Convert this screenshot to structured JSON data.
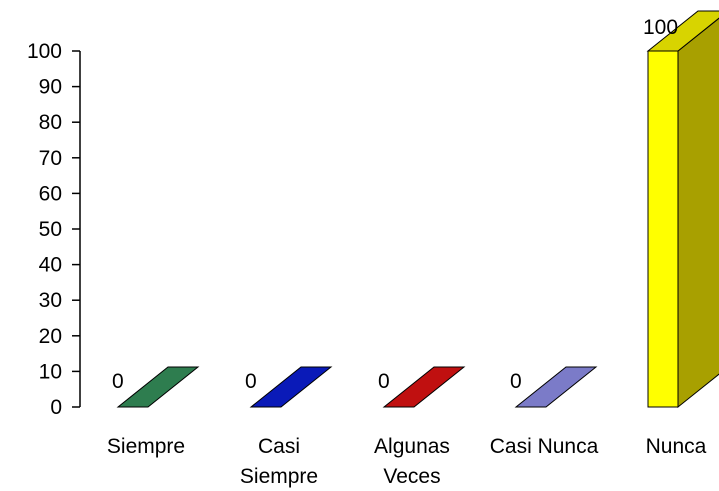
{
  "chart_data": {
    "type": "bar",
    "three_d": true,
    "categories": [
      [
        "Siempre"
      ],
      [
        "Casi",
        "Siempre"
      ],
      [
        "Algunas",
        "Veces"
      ],
      [
        "Casi Nunca"
      ],
      [
        "Nunca"
      ]
    ],
    "values": [
      0,
      0,
      0,
      0,
      100
    ],
    "data_labels": [
      "0",
      "0",
      "0",
      "0",
      "100"
    ],
    "colors": [
      "#2e7d4f",
      "#0a1ab8",
      "#c01010",
      "#7b7bc8",
      "#ffff00"
    ],
    "side_colors": [
      "#1f5a38",
      "#071290",
      "#8f0c0c",
      "#5c5c9c",
      "#a8a000"
    ],
    "ylim": [
      0,
      100
    ],
    "yticks": [
      "0",
      "10",
      "20",
      "30",
      "40",
      "50",
      "60",
      "70",
      "80",
      "90",
      "100"
    ],
    "title": "",
    "xlabel": "",
    "ylabel": "",
    "grid": false,
    "legend": "none"
  }
}
